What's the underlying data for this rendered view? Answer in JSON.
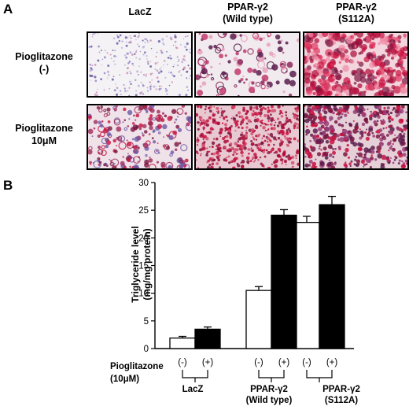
{
  "panel_a": {
    "letter": "A",
    "columns": [
      {
        "line1": "LacZ",
        "line2": ""
      },
      {
        "line1": "PPAR-γ2",
        "line2": "(Wild type)"
      },
      {
        "line1": "PPAR-γ2",
        "line2": "(S112A)"
      }
    ],
    "rows": [
      {
        "line1": "Pioglitazone",
        "line2": "(-)"
      },
      {
        "line1": "Pioglitazone",
        "line2": "10μM"
      }
    ]
  },
  "panel_b": {
    "letter": "B",
    "treatment_label": "Pioglitazone",
    "treatment_sub": "(10μM)",
    "minus": "(-)",
    "plus": "(+)",
    "group_labels": [
      {
        "line1": "LacZ",
        "line2": ""
      },
      {
        "line1": "PPAR-γ2",
        "line2": "(Wild type)"
      },
      {
        "line1": "PPAR-γ2",
        "line2": "(S112A)"
      }
    ]
  },
  "colors": {
    "minus_bar": "#ffffff",
    "plus_bar": "#000000",
    "stain": "#c8103e",
    "stain_dark": "#7a1640"
  },
  "chart_data": {
    "type": "bar",
    "categories": [
      "LacZ",
      "PPAR-γ2 (Wild type)",
      "PPAR-γ2 (S112A)"
    ],
    "series": [
      {
        "name": "(-)",
        "values": [
          1.9,
          10.5,
          22.8
        ],
        "errors": [
          0.3,
          0.7,
          1.1
        ]
      },
      {
        "name": "(+)",
        "values": [
          3.5,
          24.1,
          26.0
        ],
        "errors": [
          0.4,
          1.0,
          1.5
        ]
      }
    ],
    "ylabel_line1": "Triglyceride level",
    "ylabel_line2": "(mg/mg protein)",
    "ylim": [
      0,
      30
    ],
    "yticks": [
      "0",
      "5",
      "10",
      "15",
      "20",
      "25",
      "30"
    ],
    "grid": false
  }
}
